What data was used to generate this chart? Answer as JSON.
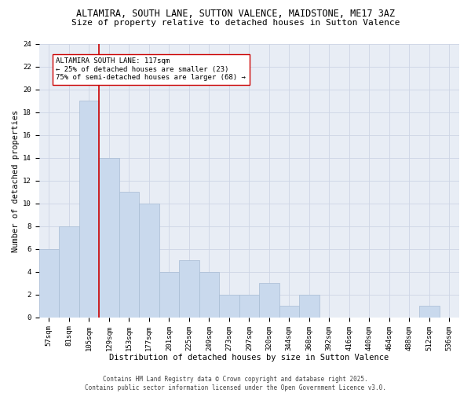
{
  "title_line1": "ALTAMIRA, SOUTH LANE, SUTTON VALENCE, MAIDSTONE, ME17 3AZ",
  "title_line2": "Size of property relative to detached houses in Sutton Valence",
  "xlabel": "Distribution of detached houses by size in Sutton Valence",
  "ylabel": "Number of detached properties",
  "categories": [
    "57sqm",
    "81sqm",
    "105sqm",
    "129sqm",
    "153sqm",
    "177sqm",
    "201sqm",
    "225sqm",
    "249sqm",
    "273sqm",
    "297sqm",
    "320sqm",
    "344sqm",
    "368sqm",
    "392sqm",
    "416sqm",
    "440sqm",
    "464sqm",
    "488sqm",
    "512sqm",
    "536sqm"
  ],
  "values": [
    6,
    8,
    19,
    14,
    11,
    10,
    4,
    5,
    4,
    2,
    2,
    3,
    1,
    2,
    0,
    0,
    0,
    0,
    0,
    1,
    0
  ],
  "bar_color": "#c9d9ed",
  "bar_edge_color": "#a8bcd4",
  "property_line_x": 2.5,
  "annotation_text": "ALTAMIRA SOUTH LANE: 117sqm\n← 25% of detached houses are smaller (23)\n75% of semi-detached houses are larger (68) →",
  "annotation_box_color": "#ffffff",
  "annotation_box_edge": "#cc0000",
  "vline_color": "#cc0000",
  "ylim": [
    0,
    24
  ],
  "yticks": [
    0,
    2,
    4,
    6,
    8,
    10,
    12,
    14,
    16,
    18,
    20,
    22,
    24
  ],
  "grid_color": "#cdd5e5",
  "background_color": "#e8edf5",
  "footnote": "Contains HM Land Registry data © Crown copyright and database right 2025.\nContains public sector information licensed under the Open Government Licence v3.0.",
  "title_fontsize": 8.5,
  "subtitle_fontsize": 8,
  "axis_label_fontsize": 7.5,
  "tick_fontsize": 6.5,
  "annotation_fontsize": 6.5,
  "footnote_fontsize": 5.5
}
